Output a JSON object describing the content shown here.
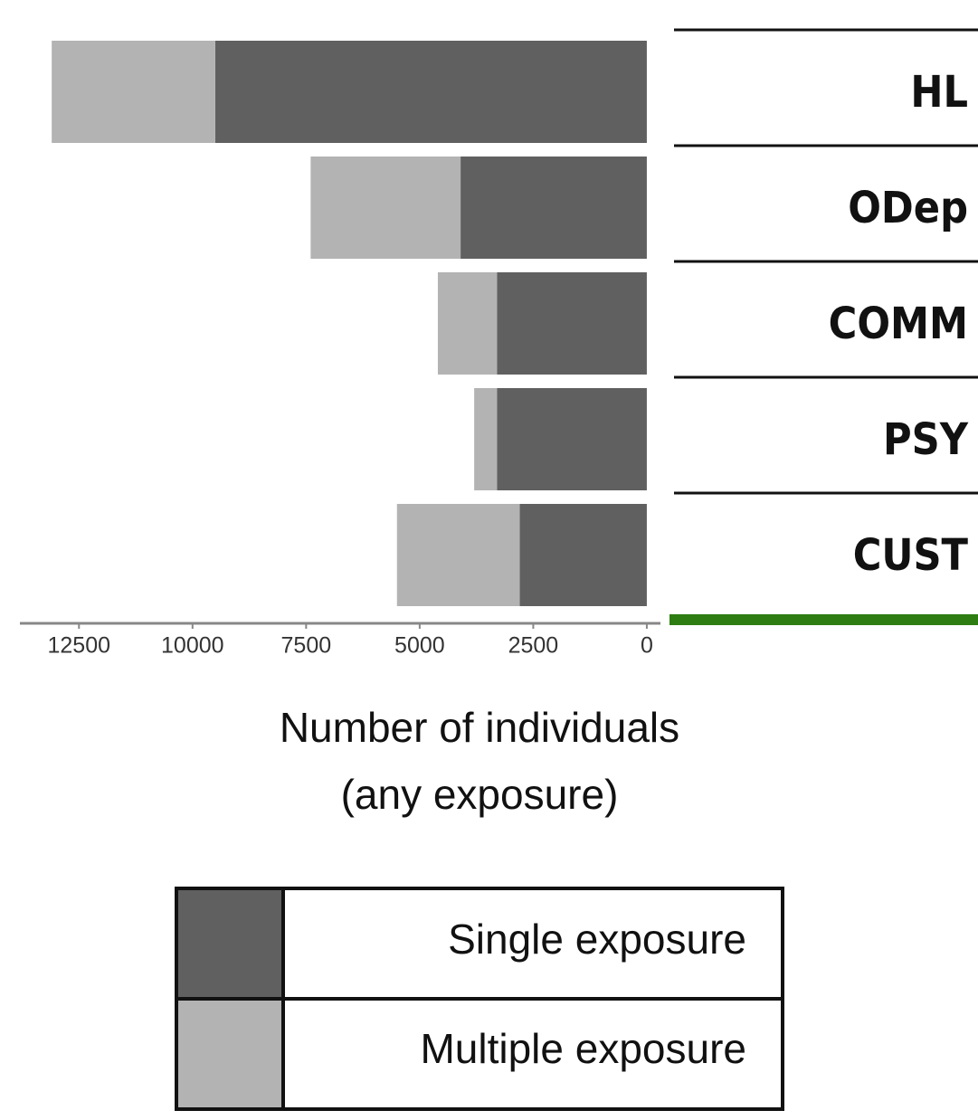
{
  "chart_data": {
    "type": "bar",
    "orientation": "horizontal",
    "stacked": true,
    "categories": [
      "HL",
      "ODep",
      "COMM",
      "PSY",
      "CUST"
    ],
    "series": [
      {
        "name": "Single exposure",
        "color": "#606060",
        "values": [
          9500,
          4100,
          3300,
          3300,
          2800
        ]
      },
      {
        "name": "Multiple exposure",
        "color": "#b3b3b3",
        "values": [
          3600,
          3300,
          1300,
          500,
          2700
        ]
      }
    ],
    "xlabel": [
      "Number of individuals",
      "(any exposure)"
    ],
    "xlim": [
      13800,
      -300
    ],
    "xticks": [
      12500,
      10000,
      7500,
      5000,
      2500,
      0
    ],
    "grid": false
  }
}
